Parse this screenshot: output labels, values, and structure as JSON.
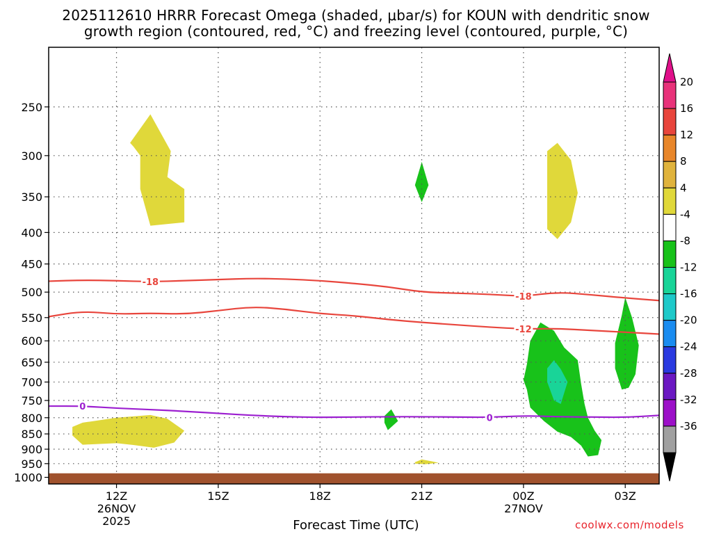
{
  "title_line1": "2025112610 HRRR Forecast Omega (shaded, μbar/s) for KOUN with dendritic snow",
  "title_line2": "growth region (contoured, red, °C) and freezing level (contoured, purple, °C)",
  "credit": "coolwx.com/models",
  "chart_data": {
    "type": "time-height cross section",
    "title": "2025112610 HRRR Forecast Omega (shaded, μbar/s) for KOUN with dendritic snow growth region (contoured, red, °C) and freezing level (contoured, purple, °C)",
    "xlabel": "Forecast Time (UTC)",
    "ylabel": "",
    "x_units": "hours since 2025-11-26 10Z",
    "xlim": [
      0,
      18
    ],
    "ylim": [
      1025,
      200
    ],
    "grid": true,
    "x_ticks": [
      {
        "hour": 2,
        "label": "12Z",
        "sub1": "26NOV",
        "sub2": "2025"
      },
      {
        "hour": 5,
        "label": "15Z",
        "sub1": "",
        "sub2": ""
      },
      {
        "hour": 8,
        "label": "18Z",
        "sub1": "",
        "sub2": ""
      },
      {
        "hour": 11,
        "label": "21Z",
        "sub1": "",
        "sub2": ""
      },
      {
        "hour": 14,
        "label": "00Z",
        "sub1": "27NOV",
        "sub2": ""
      },
      {
        "hour": 17,
        "label": "03Z",
        "sub1": "",
        "sub2": ""
      }
    ],
    "y_ticks": [
      {
        "p": 250,
        "label": "250"
      },
      {
        "p": 300,
        "label": "300"
      },
      {
        "p": 350,
        "label": "350"
      },
      {
        "p": 400,
        "label": "400"
      },
      {
        "p": 450,
        "label": "450"
      },
      {
        "p": 500,
        "label": "500"
      },
      {
        "p": 550,
        "label": "550"
      },
      {
        "p": 600,
        "label": "600"
      },
      {
        "p": 650,
        "label": "650"
      },
      {
        "p": 700,
        "label": "700"
      },
      {
        "p": 750,
        "label": "750"
      },
      {
        "p": 800,
        "label": "800"
      },
      {
        "p": 850,
        "label": "850"
      },
      {
        "p": 900,
        "label": "900"
      },
      {
        "p": 950,
        "label": "950"
      },
      {
        "p": 1000,
        "label": "1000"
      }
    ],
    "ground": {
      "from_p": 985,
      "color": "#a0522d"
    },
    "contours": [
      {
        "name": "-18C isotherm",
        "label": "-18",
        "color": "#e8453c",
        "points": [
          [
            0,
            480
          ],
          [
            1,
            478
          ],
          [
            2,
            479
          ],
          [
            3,
            481
          ],
          [
            4,
            479
          ],
          [
            5,
            477
          ],
          [
            6,
            475
          ],
          [
            7,
            476
          ],
          [
            8,
            479
          ],
          [
            9,
            484
          ],
          [
            10,
            490
          ],
          [
            11,
            500
          ],
          [
            12,
            502
          ],
          [
            13,
            504
          ],
          [
            14,
            508
          ],
          [
            15,
            500
          ],
          [
            16,
            505
          ],
          [
            17,
            511
          ],
          [
            18,
            516
          ]
        ],
        "labels_at": [
          3,
          14
        ]
      },
      {
        "name": "-12C isotherm",
        "label": "-12",
        "color": "#e8453c",
        "points": [
          [
            0,
            548
          ],
          [
            1,
            537
          ],
          [
            2,
            543
          ],
          [
            3,
            541
          ],
          [
            4,
            543
          ],
          [
            5,
            536
          ],
          [
            6,
            528
          ],
          [
            7,
            533
          ],
          [
            8,
            542
          ],
          [
            9,
            546
          ],
          [
            10,
            554
          ],
          [
            11,
            560
          ],
          [
            12,
            565
          ],
          [
            13,
            570
          ],
          [
            14,
            574
          ],
          [
            15,
            573
          ],
          [
            16,
            577
          ],
          [
            17,
            581
          ],
          [
            18,
            585
          ]
        ],
        "labels_at": [
          14
        ]
      },
      {
        "name": "0C freezing level",
        "label": "0",
        "color": "#9c1fd0",
        "points": [
          [
            0,
            766
          ],
          [
            1,
            766
          ],
          [
            2,
            772
          ],
          [
            3,
            776
          ],
          [
            4,
            781
          ],
          [
            5,
            787
          ],
          [
            6,
            793
          ],
          [
            7,
            797
          ],
          [
            8,
            799
          ],
          [
            9,
            798
          ],
          [
            10,
            797
          ],
          [
            11,
            797
          ],
          [
            12,
            798
          ],
          [
            13,
            799
          ],
          [
            14,
            794
          ],
          [
            15,
            797
          ],
          [
            16,
            798
          ],
          [
            17,
            799
          ],
          [
            18,
            793
          ]
        ],
        "labels_at": [
          1,
          13
        ]
      }
    ],
    "omega_regions": [
      {
        "level": 4,
        "color": "#e0d83a",
        "points": [
          [
            2.4,
            286
          ],
          [
            3.0,
            257
          ],
          [
            3.6,
            295
          ],
          [
            3.5,
            325
          ],
          [
            4.0,
            340
          ],
          [
            4.0,
            385
          ],
          [
            3.0,
            390
          ],
          [
            2.7,
            340
          ],
          [
            2.7,
            300
          ],
          [
            2.5,
            290
          ]
        ]
      },
      {
        "level": 4,
        "color": "#e0d83a",
        "points": [
          [
            0.7,
            828
          ],
          [
            1.0,
            815
          ],
          [
            2.0,
            800
          ],
          [
            3.0,
            792
          ],
          [
            3.5,
            803
          ],
          [
            4.0,
            840
          ],
          [
            3.7,
            878
          ],
          [
            3.1,
            895
          ],
          [
            2.5,
            886
          ],
          [
            2.0,
            880
          ],
          [
            1.0,
            885
          ],
          [
            0.7,
            855
          ]
        ]
      },
      {
        "level": 4,
        "color": "#e0d83a",
        "points": [
          [
            14.7,
            295
          ],
          [
            15.0,
            286
          ],
          [
            15.4,
            305
          ],
          [
            15.6,
            345
          ],
          [
            15.4,
            385
          ],
          [
            15.0,
            410
          ],
          [
            14.7,
            395
          ],
          [
            14.7,
            340
          ]
        ]
      },
      {
        "level": 4,
        "color": "#e0d83a",
        "points": [
          [
            10.8,
            945
          ],
          [
            11.0,
            935
          ],
          [
            11.3,
            942
          ],
          [
            11.5,
            947
          ],
          [
            11.1,
            952
          ],
          [
            10.8,
            950
          ]
        ]
      },
      {
        "level": -4,
        "color": "#18c21a",
        "points": [
          [
            11.0,
            307
          ],
          [
            11.2,
            335
          ],
          [
            11.0,
            357
          ],
          [
            10.8,
            335
          ]
        ]
      },
      {
        "level": -4,
        "color": "#18c21a",
        "points": [
          [
            9.9,
            795
          ],
          [
            10.1,
            775
          ],
          [
            10.3,
            810
          ],
          [
            10.0,
            838
          ],
          [
            9.9,
            815
          ]
        ]
      },
      {
        "level": -4,
        "color": "#18c21a",
        "points": [
          [
            14.2,
            600
          ],
          [
            14.5,
            560
          ],
          [
            14.9,
            578
          ],
          [
            15.2,
            615
          ],
          [
            15.6,
            645
          ],
          [
            15.7,
            705
          ],
          [
            15.8,
            760
          ],
          [
            15.9,
            800
          ],
          [
            16.1,
            840
          ],
          [
            16.3,
            870
          ],
          [
            16.2,
            920
          ],
          [
            15.9,
            925
          ],
          [
            15.7,
            888
          ],
          [
            15.4,
            860
          ],
          [
            15.0,
            843
          ],
          [
            14.6,
            810
          ],
          [
            14.2,
            770
          ],
          [
            14.1,
            720
          ],
          [
            14.0,
            695
          ],
          [
            14.1,
            655
          ]
        ]
      },
      {
        "level": -8,
        "color": "#19d498",
        "points": [
          [
            14.9,
            645
          ],
          [
            15.1,
            667
          ],
          [
            15.3,
            700
          ],
          [
            15.1,
            760
          ],
          [
            14.9,
            750
          ],
          [
            14.7,
            700
          ],
          [
            14.7,
            665
          ]
        ]
      },
      {
        "level": -4,
        "color": "#18c21a",
        "points": [
          [
            16.9,
            545
          ],
          [
            17.0,
            510
          ],
          [
            17.2,
            550
          ],
          [
            17.4,
            610
          ],
          [
            17.3,
            680
          ],
          [
            17.1,
            715
          ],
          [
            16.9,
            720
          ],
          [
            16.7,
            665
          ],
          [
            16.7,
            605
          ]
        ]
      }
    ],
    "colorbar": [
      {
        "label": "20",
        "color": "#e8327a"
      },
      {
        "label": "16",
        "color": "#e8453c"
      },
      {
        "label": "12",
        "color": "#e8862a"
      },
      {
        "label": "8",
        "color": "#e0b33c"
      },
      {
        "label": "4",
        "color": "#e0d83a"
      },
      {
        "label": "-4",
        "color": "#ffffff"
      },
      {
        "label": "-8",
        "color": "#18c21a"
      },
      {
        "label": "-12",
        "color": "#19d498"
      },
      {
        "label": "-16",
        "color": "#1ec9c9"
      },
      {
        "label": "-20",
        "color": "#1a8cf0"
      },
      {
        "label": "-24",
        "color": "#2a3ae0"
      },
      {
        "label": "-28",
        "color": "#6b18c2"
      },
      {
        "label": "-32",
        "color": "#9c10c8"
      },
      {
        "label": "-36",
        "color": "#a0a0a0"
      }
    ],
    "colorbar_overflow_low": "#000000",
    "colorbar_overflow_high": "#e0108a"
  }
}
